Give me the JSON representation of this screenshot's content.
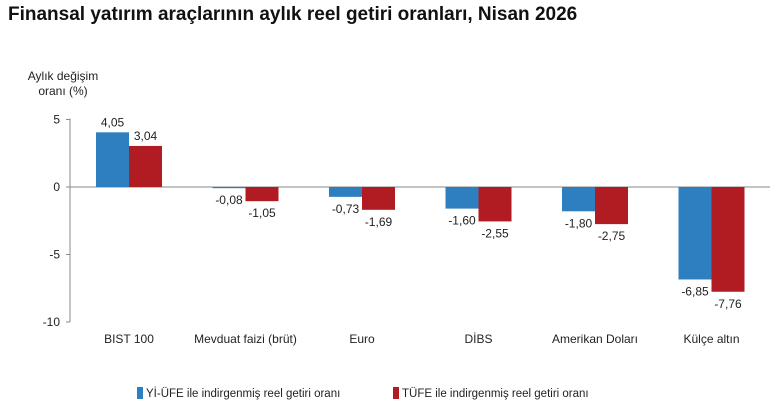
{
  "title": "Finansal yatırım araçlarının aylık reel getiri oranları, Nisan 2026",
  "chart_data": {
    "type": "bar",
    "ylabel_lines": [
      "Aylık değişim",
      "oranı (%)"
    ],
    "categories": [
      "BIST 100",
      "Mevduat faizi (brüt)",
      "Euro",
      "DİBS",
      "Amerikan Doları",
      "Külçe altın"
    ],
    "series": [
      {
        "name": "Yİ-ÜFE ile indirgenmiş reel getiri oranı",
        "color": "#2e7fc0",
        "values": [
          4.05,
          -0.08,
          -0.73,
          -1.6,
          -1.8,
          -6.85
        ],
        "labels": [
          "4,05",
          "-0,08",
          "-0,73",
          "-1,60",
          "-1,80",
          "-6,85"
        ]
      },
      {
        "name": "TÜFE ile indirgenmiş reel getiri oranı",
        "color": "#b11b22",
        "values": [
          3.04,
          -1.05,
          -1.69,
          -2.55,
          -2.75,
          -7.76
        ],
        "labels": [
          "3,04",
          "-1,05",
          "-1,69",
          "-2,55",
          "-2,75",
          "-7,76"
        ]
      }
    ],
    "yticks": [
      5,
      0,
      -5,
      -10
    ],
    "ylim": [
      -10,
      5
    ],
    "grid": false,
    "legend_position": "bottom"
  }
}
